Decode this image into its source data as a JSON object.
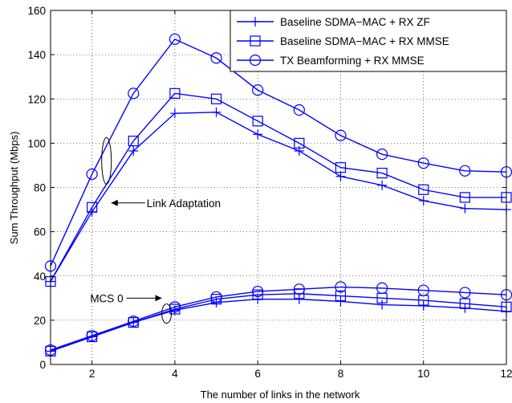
{
  "chart_data": {
    "type": "line",
    "xlabel": "The number of links in the network",
    "ylabel": "Sum Throughput (Mbps)",
    "xlim": [
      1,
      12
    ],
    "ylim": [
      0,
      160
    ],
    "x_ticks": [
      "2",
      "4",
      "6",
      "8",
      "10",
      "12"
    ],
    "y_ticks": [
      "0",
      "20",
      "40",
      "60",
      "80",
      "100",
      "120",
      "140",
      "160"
    ],
    "grid": "dotted",
    "legend_position": "top-right",
    "color": "#0000ff",
    "x": [
      1,
      2,
      3,
      4,
      5,
      6,
      7,
      8,
      9,
      10,
      11,
      12
    ],
    "series": [
      {
        "name": "Baseline SDMA−MAC + RX ZF",
        "marker": "plus",
        "group": "Link Adaptation",
        "values": [
          37.5,
          69,
          96.5,
          113.5,
          114,
          104,
          96.5,
          85,
          81,
          74,
          70.5,
          70
        ]
      },
      {
        "name": "Baseline SDMA−MAC + RX MMSE",
        "marker": "square",
        "group": "Link Adaptation",
        "values": [
          37.5,
          71,
          101,
          122.5,
          120,
          110,
          100,
          89,
          86.5,
          79,
          75.5,
          75.5
        ]
      },
      {
        "name": "TX Beamforming + RX MMSE",
        "marker": "circle",
        "group": "Link Adaptation",
        "values": [
          44.5,
          86,
          122.5,
          147,
          138.5,
          124,
          115,
          103.5,
          95,
          91,
          87.5,
          87
        ]
      },
      {
        "name": "Baseline SDMA−MAC + RX ZF",
        "marker": "plus",
        "group": "MCS 0",
        "values": [
          6,
          12.5,
          19,
          24.5,
          28,
          29.5,
          29.5,
          28.5,
          27,
          26.5,
          25.5,
          24
        ]
      },
      {
        "name": "Baseline SDMA−MAC + RX MMSE",
        "marker": "square",
        "group": "MCS 0",
        "values": [
          6,
          12.5,
          19,
          25,
          29.5,
          31.5,
          32,
          31,
          30,
          29,
          27.5,
          26
        ]
      },
      {
        "name": "TX Beamforming + RX MMSE",
        "marker": "circle",
        "group": "MCS 0",
        "values": [
          6.5,
          13,
          19.5,
          26,
          30.5,
          33,
          34,
          35,
          34.5,
          33.5,
          32.5,
          31.5
        ]
      }
    ],
    "legend": [
      {
        "label": "Baseline SDMA−MAC + RX ZF",
        "marker": "plus"
      },
      {
        "label": "Baseline SDMA−MAC + RX MMSE",
        "marker": "square"
      },
      {
        "label": "TX Beamforming + RX MMSE",
        "marker": "circle"
      }
    ],
    "annotations": [
      {
        "text": "Link Adaptation",
        "target_x": 2.35,
        "target_y": 92
      },
      {
        "text": "MCS 0",
        "target_x": 3.8,
        "target_y": 23
      }
    ]
  }
}
